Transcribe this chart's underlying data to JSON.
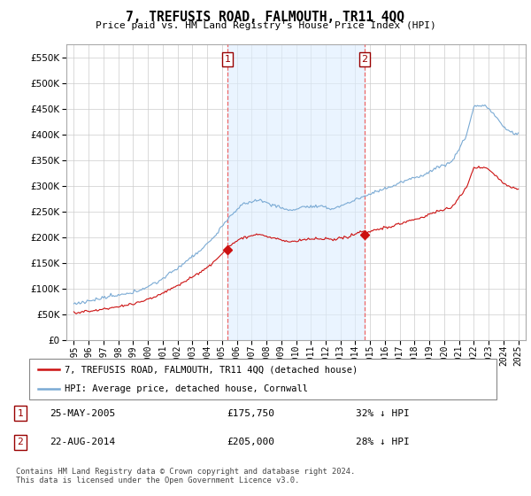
{
  "title": "7, TREFUSIS ROAD, FALMOUTH, TR11 4QQ",
  "subtitle": "Price paid vs. HM Land Registry's House Price Index (HPI)",
  "legend_line1": "7, TREFUSIS ROAD, FALMOUTH, TR11 4QQ (detached house)",
  "legend_line2": "HPI: Average price, detached house, Cornwall",
  "transaction1_date": "25-MAY-2005",
  "transaction1_price": "£175,750",
  "transaction1_hpi": "32% ↓ HPI",
  "transaction2_date": "22-AUG-2014",
  "transaction2_price": "£205,000",
  "transaction2_hpi": "28% ↓ HPI",
  "footer": "Contains HM Land Registry data © Crown copyright and database right 2024.\nThis data is licensed under the Open Government Licence v3.0.",
  "vline1_x": 2005.38,
  "vline2_x": 2014.63,
  "marker1_x": 2005.38,
  "marker1_y": 175750,
  "marker2_x": 2014.63,
  "marker2_y": 205000,
  "hpi_color": "#7aaad4",
  "hpi_fill_color": "#ddeeff",
  "price_color": "#cc1111",
  "vline_color": "#ee6666",
  "marker_color": "#cc1111",
  "ylim": [
    0,
    575000
  ],
  "yticks": [
    0,
    50000,
    100000,
    150000,
    200000,
    250000,
    300000,
    350000,
    400000,
    450000,
    500000,
    550000
  ],
  "xlim": [
    1994.5,
    2025.5
  ],
  "xticks": [
    1995,
    1996,
    1997,
    1998,
    1999,
    2000,
    2001,
    2002,
    2003,
    2004,
    2005,
    2006,
    2007,
    2008,
    2009,
    2010,
    2011,
    2012,
    2013,
    2014,
    2015,
    2016,
    2017,
    2018,
    2019,
    2020,
    2021,
    2022,
    2023,
    2024,
    2025
  ],
  "bg_color": "#ffffff",
  "grid_color": "#cccccc"
}
